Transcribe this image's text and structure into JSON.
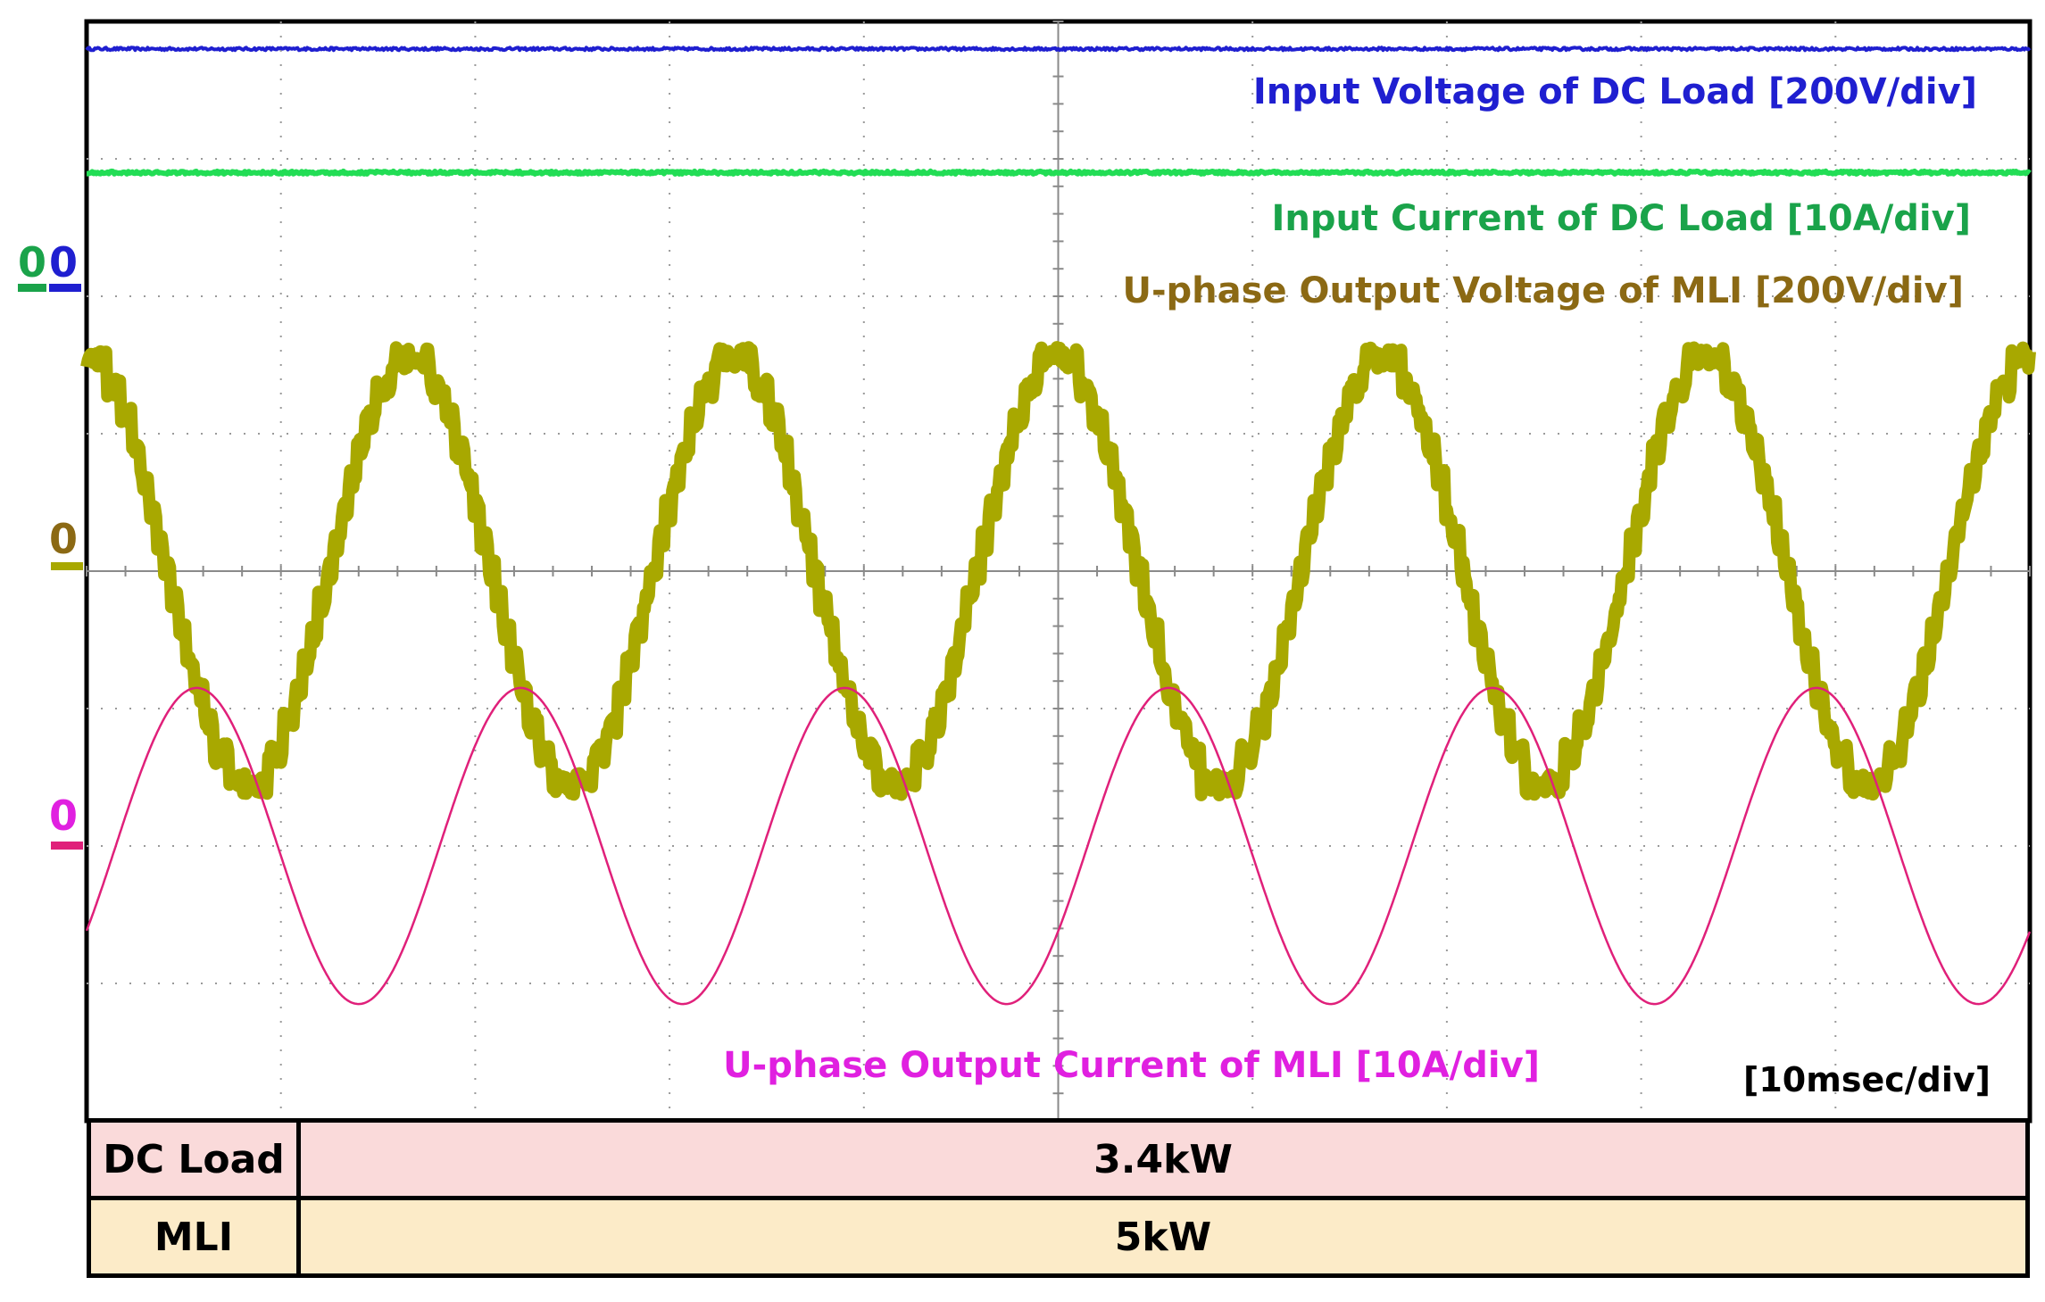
{
  "chart_data": {
    "type": "line",
    "title": "",
    "time_scale": "[10msec/div]",
    "grid": true,
    "x": {
      "divisions": 10,
      "unit": "ms",
      "ms_per_div": 10
    },
    "y": {
      "divisions": 8
    },
    "series": [
      {
        "name": "Input Voltage of DC Load [200V/div]",
        "color": "#1f1fd0",
        "ground_marker": "0",
        "kind": "dc",
        "level_div": 3.8
      },
      {
        "name": "Input Current of DC Load [10A/div]",
        "color": "#22dd55",
        "ground_marker": "0",
        "kind": "dc",
        "level_div": 2.9
      },
      {
        "name": "U-phase Output Voltage of MLI [200V/div]",
        "color": "#a8a800",
        "label_color": "#8b6914",
        "ground_marker": "0",
        "kind": "multilevel-sine",
        "amplitude_div": 1.55,
        "period_ms": 16.67,
        "phase_ms": 12.5,
        "levels": 7
      },
      {
        "name": "U-phase Output Current of MLI [10A/div]",
        "color": "#e0207a",
        "label_color": "#e020e0",
        "ground_marker": "0",
        "kind": "sine",
        "offset_div": -2.0,
        "amplitude_div": 1.15,
        "period_ms": 16.67,
        "phase_ms": 1.5
      }
    ]
  },
  "table": {
    "rows": [
      {
        "label": "DC Load",
        "value": "3.4kW"
      },
      {
        "label": "MLI",
        "value": "5kW"
      }
    ]
  }
}
